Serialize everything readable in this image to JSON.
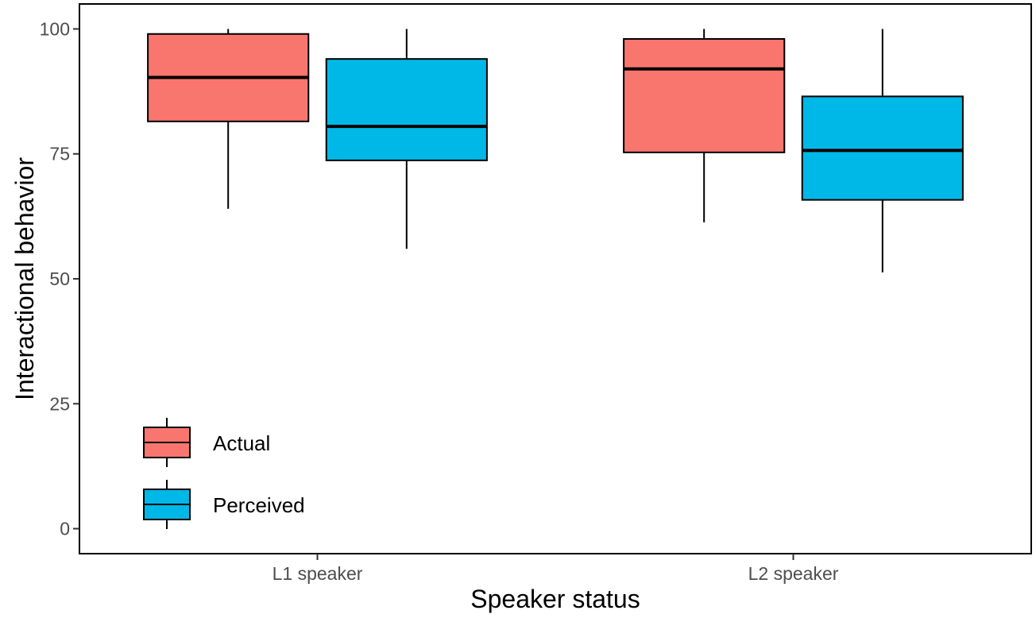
{
  "chart_data": {
    "type": "box",
    "title": "",
    "xlabel": "Speaker status",
    "ylabel": "Interactional behavior",
    "categories": [
      "L1 speaker",
      "L2 speaker"
    ],
    "ylim": [
      -5,
      105
    ],
    "yticks": [
      0,
      25,
      50,
      75,
      100
    ],
    "grid": false,
    "legend_position": "bottom-left",
    "series": [
      {
        "name": "Actual",
        "color": "#F8766D",
        "boxes": [
          {
            "category": "L1 speaker",
            "min": 64,
            "q1": 81.5,
            "median": 90.3,
            "q3": 99,
            "max": 100
          },
          {
            "category": "L2 speaker",
            "min": 61.3,
            "q1": 75.3,
            "median": 92,
            "q3": 98,
            "max": 100
          }
        ]
      },
      {
        "name": "Perceived",
        "color": "#00B8E7",
        "boxes": [
          {
            "category": "L1 speaker",
            "min": 56,
            "q1": 73.7,
            "median": 80.5,
            "q3": 94,
            "max": 100
          },
          {
            "category": "L2 speaker",
            "min": 51.3,
            "q1": 65.8,
            "median": 75.7,
            "q3": 86.5,
            "max": 100
          }
        ]
      }
    ]
  }
}
